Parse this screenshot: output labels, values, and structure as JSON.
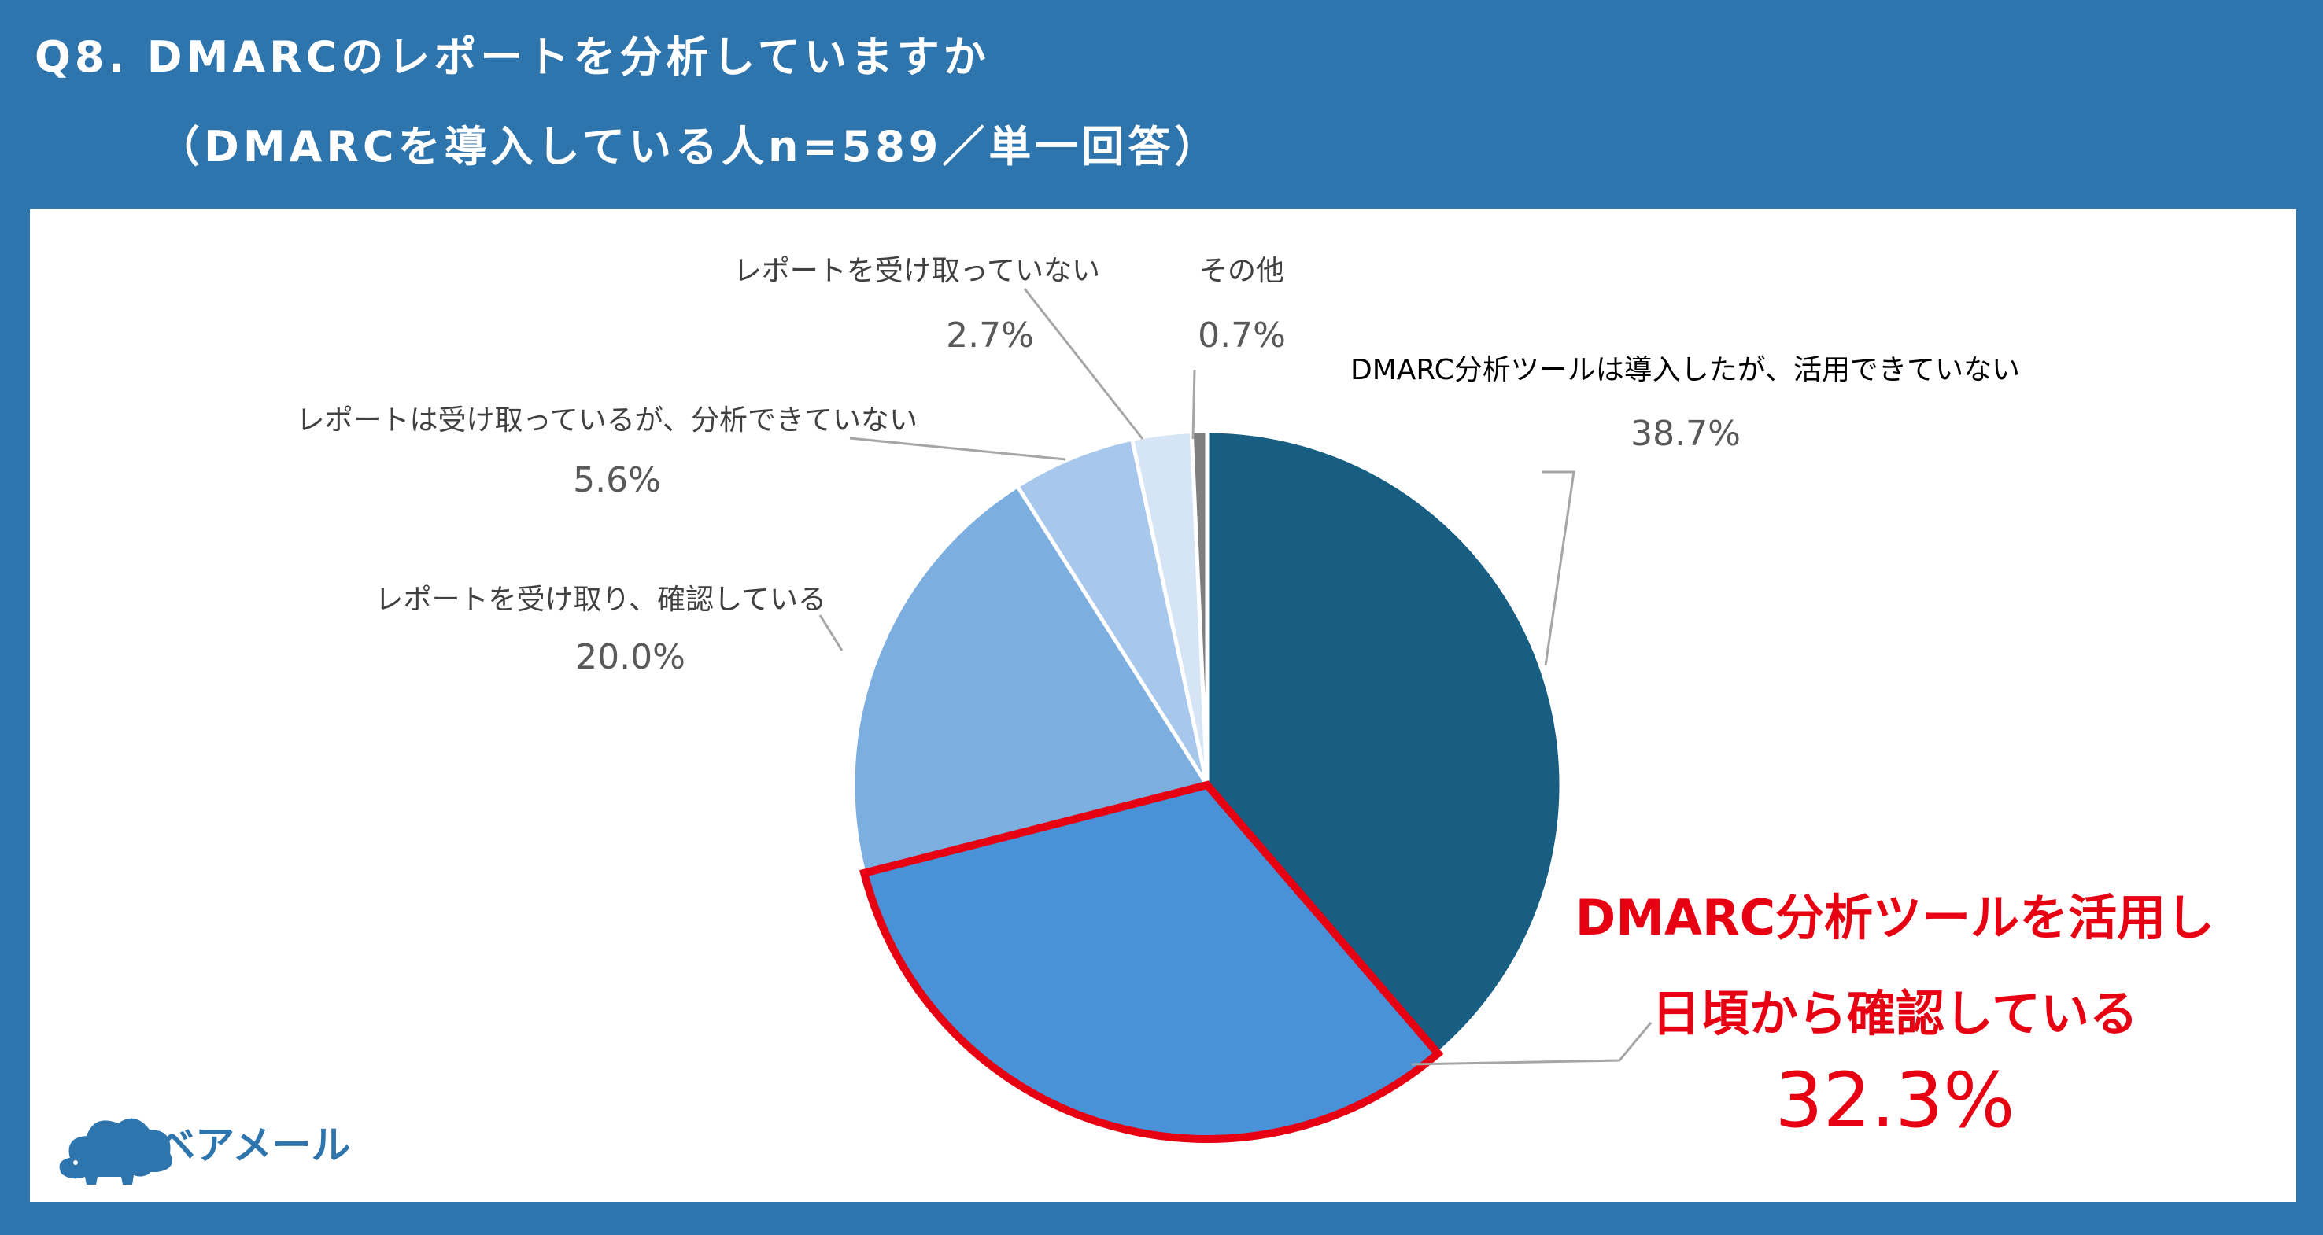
{
  "title": {
    "line1": "Q8. DMARCのレポートを分析していますか",
    "line2": "（DMARCを導入している人n=589／単一回答）"
  },
  "brand": {
    "name": "ベアメール",
    "icon": "bear-cloud-icon",
    "color": "#2e74ad"
  },
  "chart_data": {
    "type": "pie",
    "start_angle_deg": 0,
    "direction": "clockwise",
    "slices": [
      {
        "label": "DMARC分析ツールは導入したが、活用できていない",
        "value": 38.7,
        "display": "38.7%",
        "color": "#175e82"
      },
      {
        "label": "DMARC分析ツールを活用し日頃から確認している",
        "label_lines": [
          "DMARC分析ツールを活用し",
          "日頃から確認している"
        ],
        "value": 32.3,
        "display": "32.3%",
        "color": "#4a92d8",
        "highlight": true,
        "highlight_color": "#e60012"
      },
      {
        "label": "レポートを受け取り、確認している",
        "value": 20.0,
        "display": "20.0%",
        "color": "#7daee0"
      },
      {
        "label": "レポートは受け取っているが、分析できていない",
        "value": 5.6,
        "display": "5.6%",
        "color": "#a7c8ec"
      },
      {
        "label": "レポートを受け取っていない",
        "value": 2.7,
        "display": "2.7%",
        "color": "#d6e5f5"
      },
      {
        "label": "その他",
        "value": 0.7,
        "display": "0.7%",
        "color": "#7f7f7f"
      }
    ]
  }
}
